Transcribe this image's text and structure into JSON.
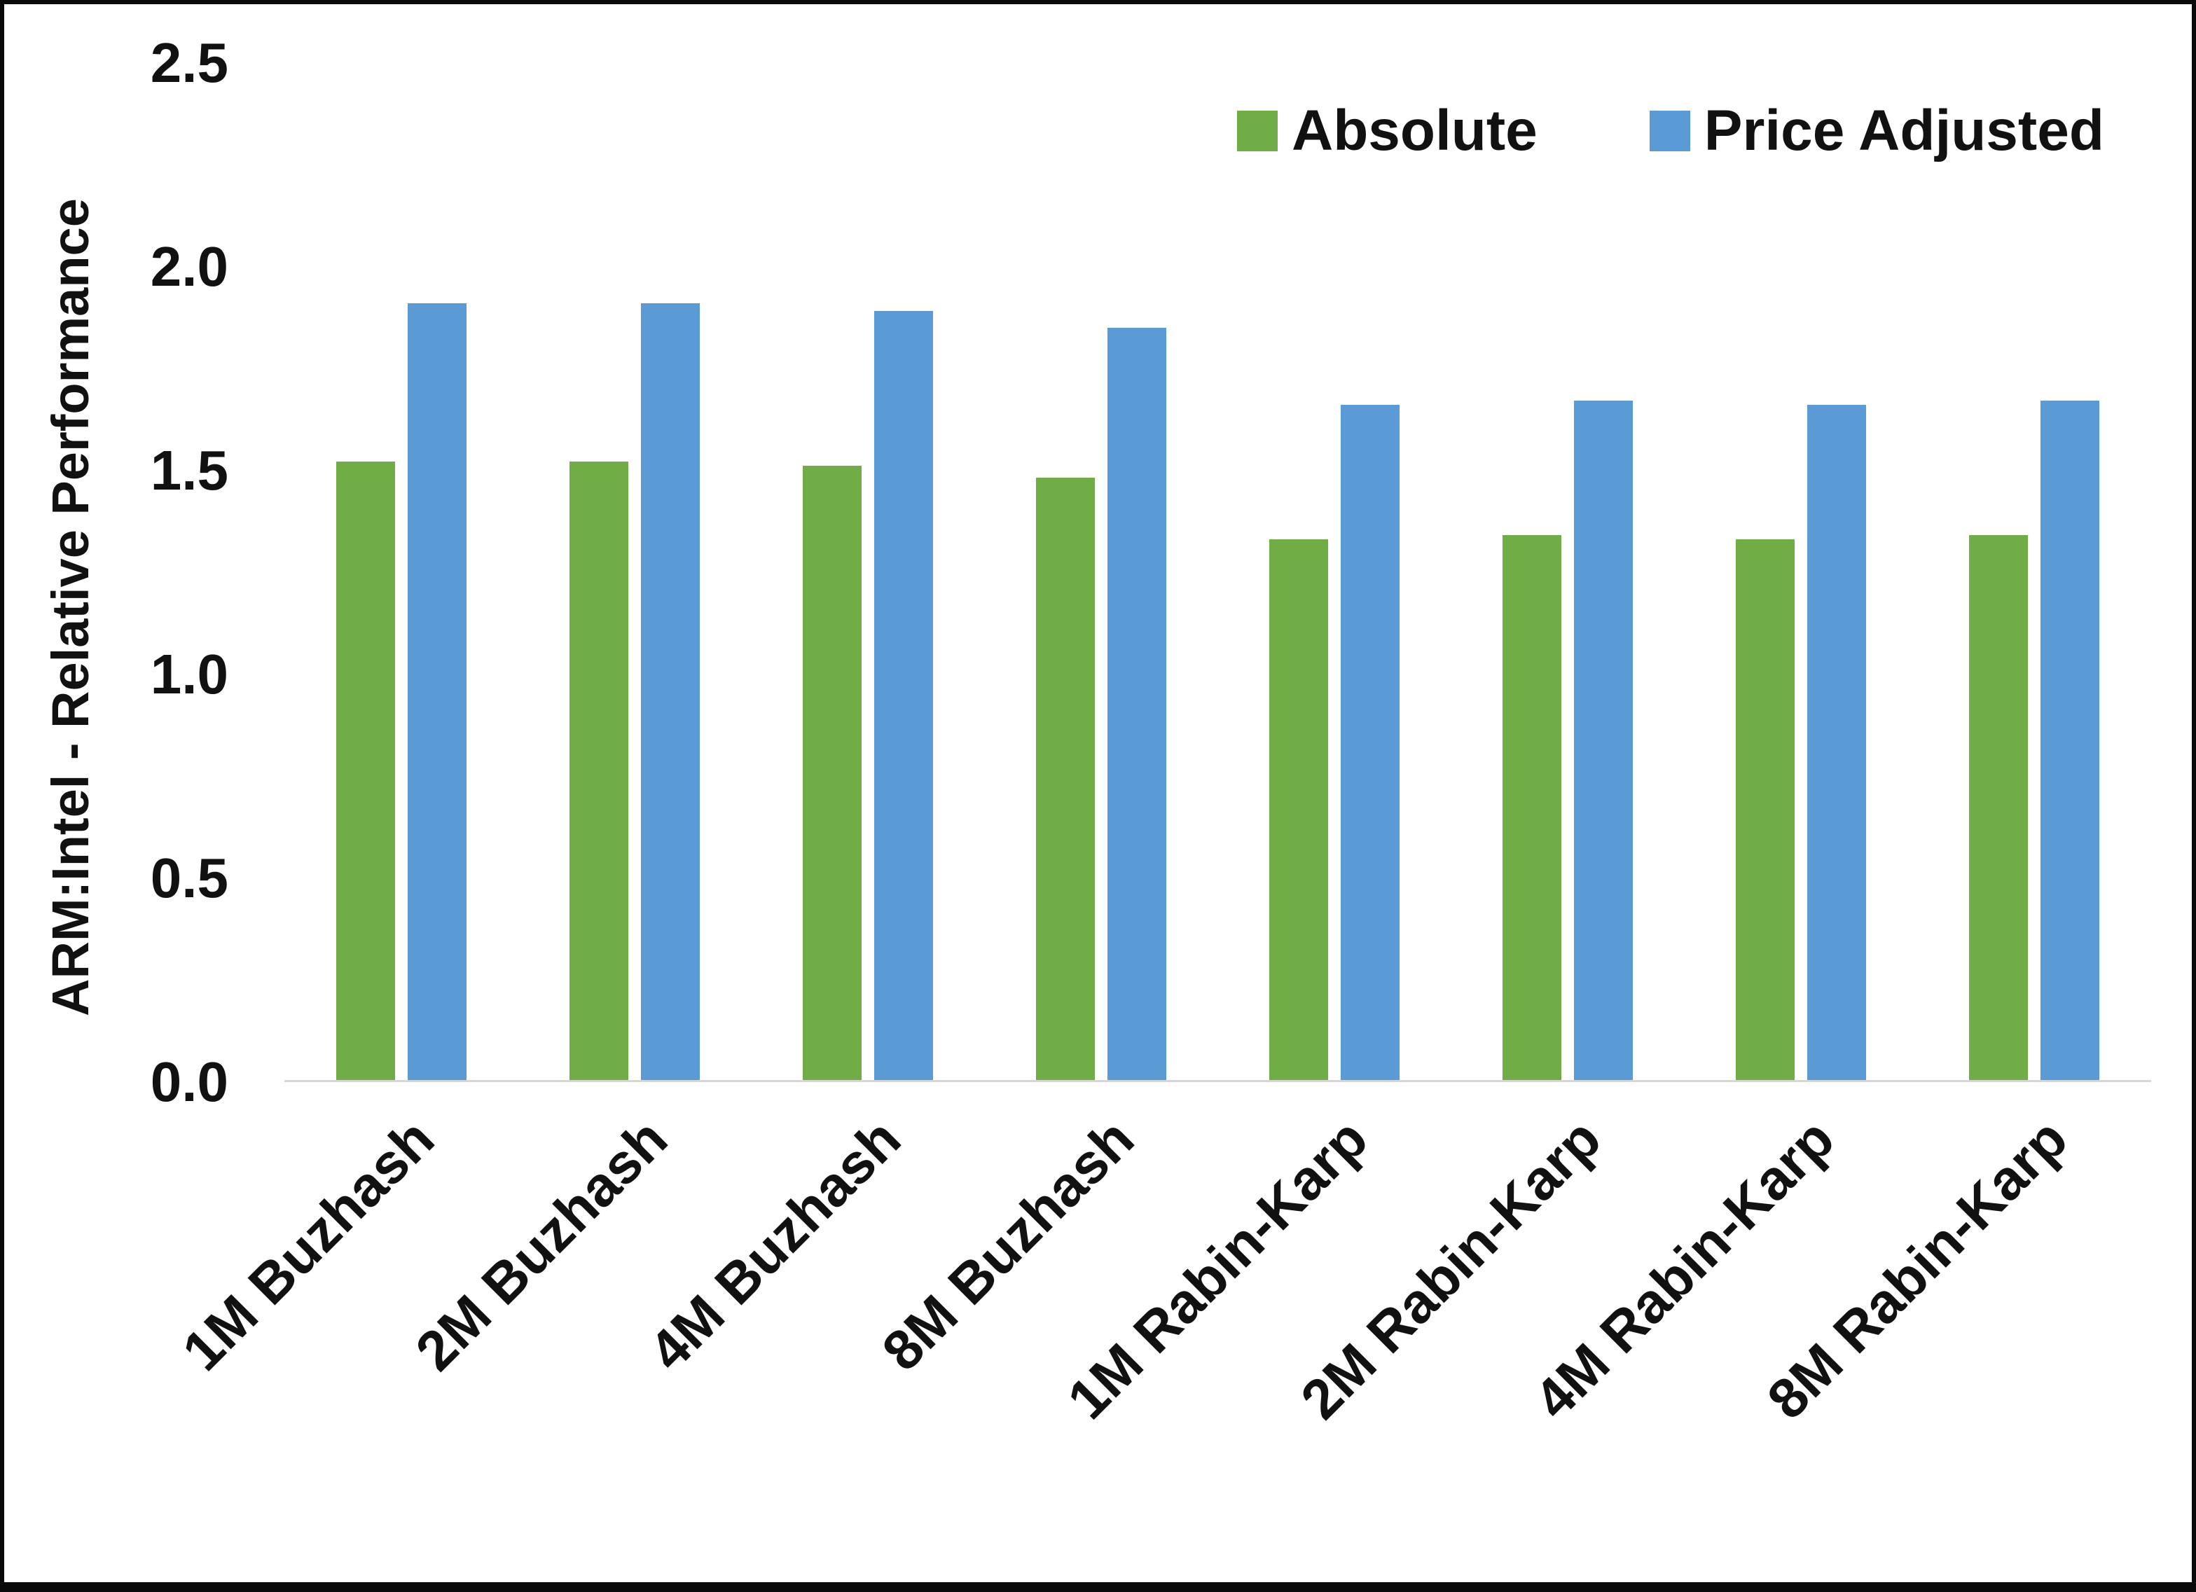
{
  "chart_data": {
    "type": "bar",
    "title": "",
    "xlabel": "",
    "ylabel": "ARM:Intel - Relative Performance",
    "ylim": [
      0,
      2.5
    ],
    "grid": false,
    "legend_position": "top-right",
    "categories": [
      "1M Buzhash",
      "2M Buzhash",
      "4M Buzhash",
      "8M Buzhash",
      "1M Rabin-Karp",
      "2M Rabin-Karp",
      "4M Rabin-Karp",
      "8M Rabin-Karp"
    ],
    "yticks": [
      {
        "value": 0.0,
        "label": "0.0"
      },
      {
        "value": 0.5,
        "label": "0.5"
      },
      {
        "value": 1.0,
        "label": "1.0"
      },
      {
        "value": 1.5,
        "label": "1.5"
      },
      {
        "value": 2.0,
        "label": "2.0"
      },
      {
        "value": 2.5,
        "label": "2.5"
      }
    ],
    "series": [
      {
        "name": "Absolute",
        "color": "#70AD47",
        "values": [
          1.52,
          1.52,
          1.51,
          1.48,
          1.33,
          1.34,
          1.33,
          1.34
        ]
      },
      {
        "name": "Price Adjusted",
        "color": "#5B9BD5",
        "values": [
          1.91,
          1.91,
          1.89,
          1.85,
          1.66,
          1.67,
          1.66,
          1.67
        ]
      }
    ]
  }
}
